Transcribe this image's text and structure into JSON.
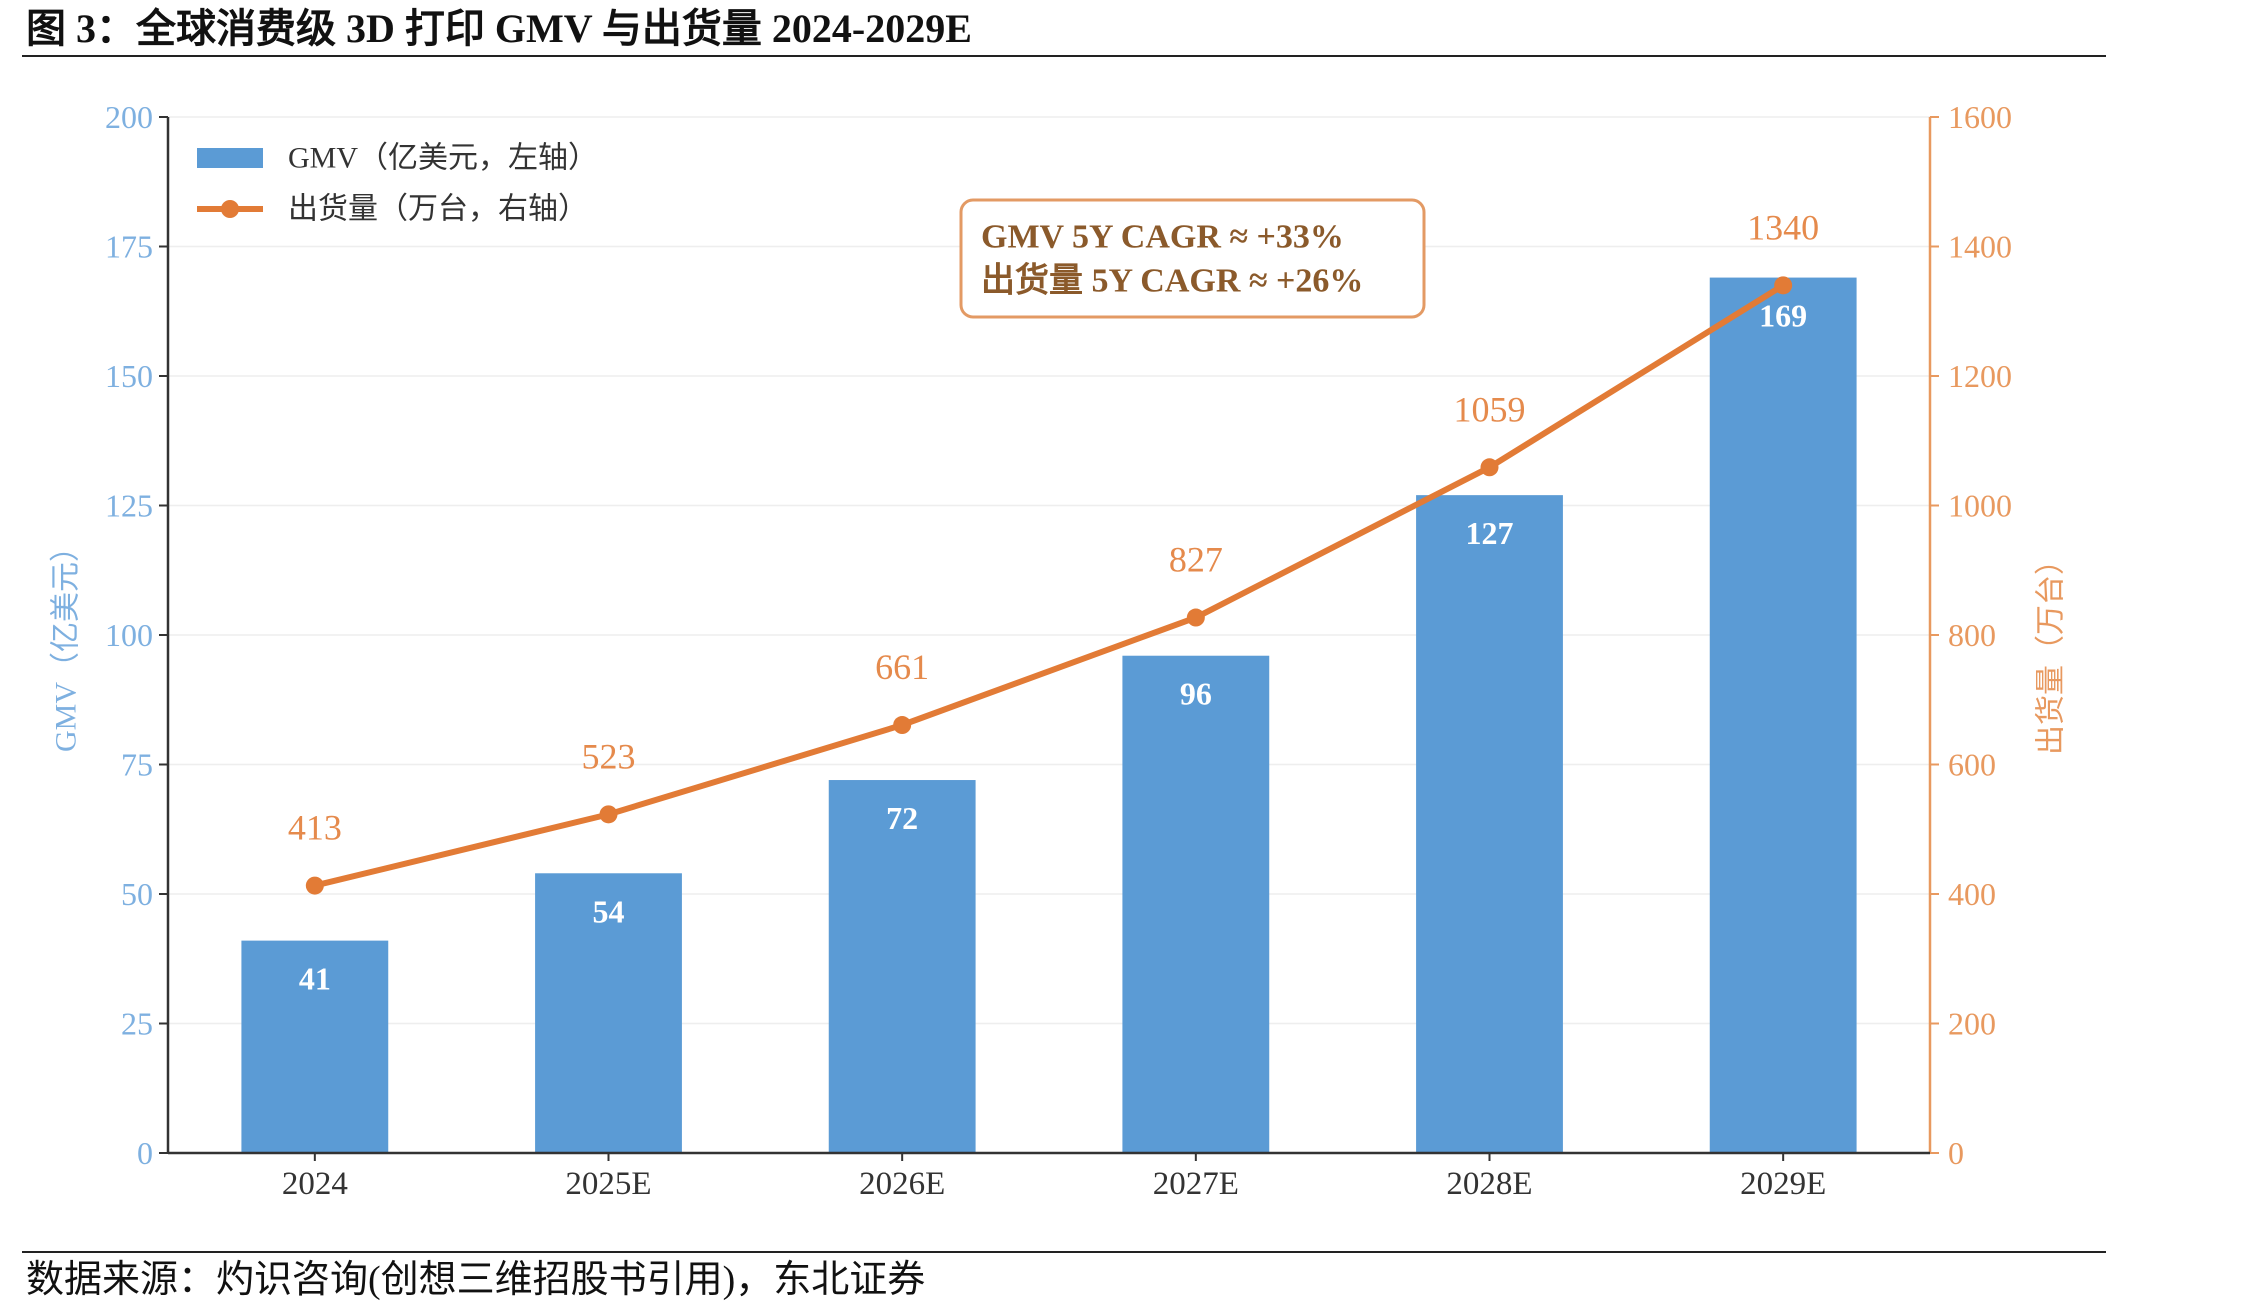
{
  "title": "图 3：全球消费级 3D 打印 GMV 与出货量 2024-2029E",
  "source": "数据来源：灼识咨询(创想三维招股书引用)，东北证券",
  "colors": {
    "bar": "#5b9bd5",
    "line": "#e27b36",
    "left_axis_text": "#7eb0e0",
    "right_axis_text": "#e8995f",
    "line_label": "#e58a4c",
    "annotation_border": "#e39a64",
    "annotation_text": "#8b5a2b",
    "axis": "#333333",
    "grid": "#eeeeee"
  },
  "chart_data": {
    "type": "bar",
    "categories": [
      "2024",
      "2025E",
      "2026E",
      "2027E",
      "2028E",
      "2029E"
    ],
    "series": [
      {
        "name": "GMV（亿美元，左轴）",
        "type": "bar",
        "axis": "left",
        "values": [
          41,
          54,
          72,
          96,
          127,
          169
        ]
      },
      {
        "name": "出货量（万台，右轴）",
        "type": "line",
        "axis": "right",
        "values": [
          413,
          523,
          661,
          827,
          1059,
          1340
        ]
      }
    ],
    "ylabel": "GMV（亿美元）",
    "y2label": "出货量（万台）",
    "ylim": [
      0,
      200
    ],
    "yticks": [
      0,
      25,
      50,
      75,
      100,
      125,
      150,
      175,
      200
    ],
    "y2lim": [
      0,
      1600
    ],
    "y2ticks": [
      0,
      200,
      400,
      600,
      800,
      1000,
      1200,
      1400,
      1600
    ],
    "annotations": [
      "GMV 5Y CAGR ≈ +33%",
      "出货量 5Y CAGR ≈ +26%"
    ],
    "data_labels": true,
    "legend": "top-left",
    "grid": true
  }
}
